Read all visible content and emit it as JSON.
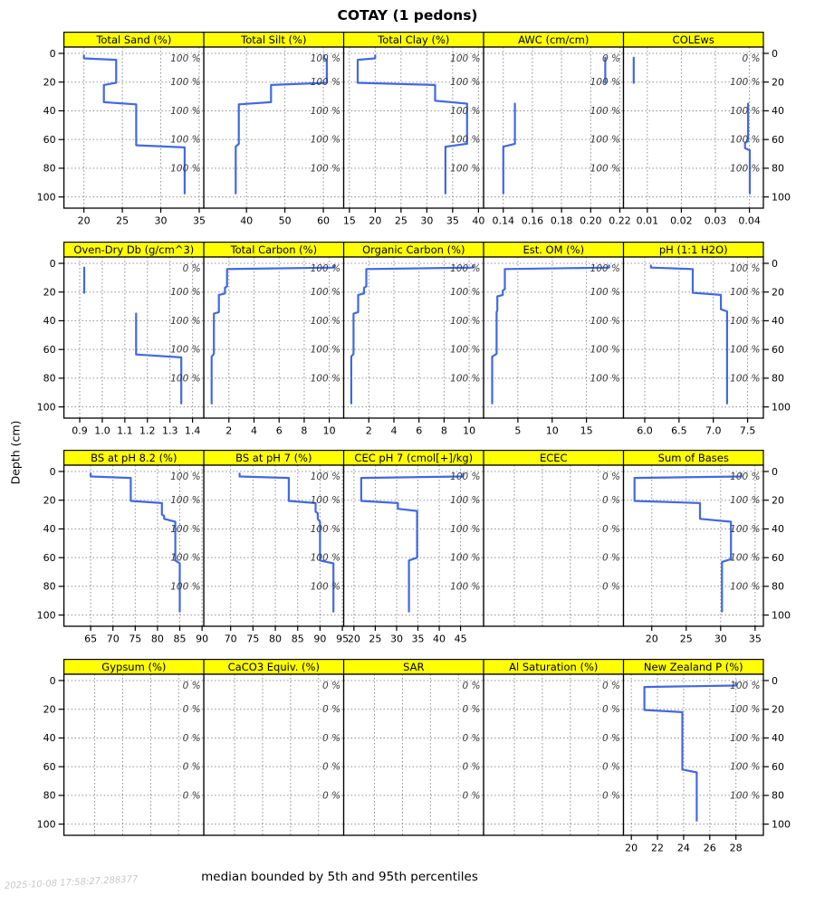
{
  "title": "COTAY (1 pedons)",
  "caption": "median bounded by 5th and 95th percentiles",
  "watermark": "2025-10-08 17:58:27.288377",
  "colors": {
    "line": "#4169E1",
    "strip_bg": "#FFFF00",
    "strip_text": "#000000",
    "grid": "#8f8f8f",
    "pct_label": "#3b3b3b",
    "axis_text": "#000000"
  },
  "chart_data": {
    "type": "line",
    "ylabel": "Depth (cm)",
    "y_ticks": [
      0,
      20,
      40,
      60,
      80,
      100
    ],
    "y_tick_labels": [
      "0",
      "20",
      "40",
      "60",
      "80",
      "100"
    ],
    "y_domain": [
      -4.4,
      107.8
    ],
    "y_axis_reversed": true,
    "grid": "dotted",
    "pct_label_depths": [
      3.5,
      20,
      40,
      60,
      80
    ],
    "panels": [
      {
        "title": "Total Sand (%)",
        "x_ticks": [
          20,
          25,
          30,
          35
        ],
        "x_tick_labels": [
          "20",
          "25",
          "30",
          "35"
        ],
        "x_domain": [
          17.4,
          35.6
        ],
        "pct_labels": [
          "100 %",
          "100 %",
          "100 %",
          "100 %",
          "100 %"
        ],
        "segments": [
          [
            [
              20,
              1.5
            ],
            [
              20,
              3.5
            ],
            [
              24.2,
              4.5
            ],
            [
              24.2,
              20.5
            ],
            [
              22.6,
              22
            ],
            [
              22.6,
              34
            ],
            [
              26.8,
              35.5
            ],
            [
              26.8,
              64
            ],
            [
              33.1,
              65.5
            ],
            [
              33.1,
              97.5
            ]
          ]
        ]
      },
      {
        "title": "Total Silt (%)",
        "x_ticks": [
          40,
          50,
          60
        ],
        "x_tick_labels": [
          "40",
          "50",
          "60"
        ],
        "x_domain": [
          28.9,
          65.3
        ],
        "pct_labels": [
          "100 %",
          "100 %",
          "100 %",
          "100 %",
          "100 %"
        ],
        "segments": [
          [
            [
              60.2,
              1.5
            ],
            [
              60.2,
              3.5
            ],
            [
              60.9,
              4.5
            ],
            [
              60.9,
              20.5
            ],
            [
              46.4,
              22
            ],
            [
              46.4,
              34
            ],
            [
              38,
              35.5
            ],
            [
              38,
              63
            ],
            [
              37.2,
              65
            ],
            [
              37.2,
              97.5
            ]
          ]
        ]
      },
      {
        "title": "Total Clay (%)",
        "x_ticks": [
          15,
          20,
          25,
          30,
          35,
          40
        ],
        "x_tick_labels": [
          "15",
          "20",
          "25",
          "30",
          "35",
          "40"
        ],
        "x_domain": [
          13.9,
          41.0
        ],
        "pct_labels": [
          "100 %",
          "100 %",
          "100 %",
          "100 %",
          "100 %"
        ],
        "segments": [
          [
            [
              20,
              1.5
            ],
            [
              20,
              3.5
            ],
            [
              16.6,
              4.5
            ],
            [
              16.6,
              20.5
            ],
            [
              31.6,
              22
            ],
            [
              31.6,
              33
            ],
            [
              37.8,
              35
            ],
            [
              37.8,
              63
            ],
            [
              33.6,
              65
            ],
            [
              33.6,
              97.5
            ]
          ]
        ]
      },
      {
        "title": "AWC (cm/cm)",
        "x_ticks": [
          0.14,
          0.16,
          0.18,
          0.2,
          0.22
        ],
        "x_tick_labels": [
          "0.14",
          "0.16",
          "0.18",
          "0.20",
          "0.22"
        ],
        "x_domain": [
          0.1265,
          0.2225
        ],
        "pct_labels": [
          "0 %",
          "100 %",
          "100 %",
          "100 %",
          "100 %"
        ],
        "segments": [
          [
            [
              0.21,
              3
            ],
            [
              0.21,
              20.5
            ]
          ],
          [
            [
              0.148,
              35
            ],
            [
              0.148,
              63
            ],
            [
              0.14,
              65
            ],
            [
              0.14,
              97.5
            ]
          ]
        ]
      },
      {
        "title": "COLEws",
        "x_ticks": [
          0.01,
          0.02,
          0.03,
          0.04
        ],
        "x_tick_labels": [
          "0.01",
          "0.02",
          "0.03",
          "0.04"
        ],
        "x_domain": [
          0.003,
          0.0441
        ],
        "pct_labels": [
          "0 %",
          "100 %",
          "100 %",
          "100 %",
          "100 %"
        ],
        "segments": [
          [
            [
              0.006,
              3
            ],
            [
              0.006,
              20.5
            ]
          ],
          [
            [
              0.0396,
              35
            ],
            [
              0.0396,
              61
            ],
            [
              0.0387,
              62.5
            ],
            [
              0.0387,
              66
            ],
            [
              0.0401,
              67.5
            ],
            [
              0.0401,
              97.5
            ]
          ]
        ]
      },
      {
        "title": "Oven-Dry Db (g/cm^3)",
        "x_ticks": [
          0.9,
          1.0,
          1.1,
          1.2,
          1.3,
          1.4
        ],
        "x_tick_labels": [
          "0.9",
          "1.0",
          "1.1",
          "1.2",
          "1.3",
          "1.4"
        ],
        "x_domain": [
          0.83,
          1.45
        ],
        "pct_labels": [
          "0 %",
          "100 %",
          "100 %",
          "100 %",
          "100 %"
        ],
        "segments": [
          [
            [
              0.92,
              3
            ],
            [
              0.92,
              20.5
            ]
          ],
          [
            [
              1.15,
              35
            ],
            [
              1.15,
              63.5
            ],
            [
              1.35,
              65.5
            ],
            [
              1.35,
              97.5
            ]
          ]
        ]
      },
      {
        "title": "Total Carbon (%)",
        "x_ticks": [
          2,
          4,
          6,
          8,
          10
        ],
        "x_tick_labels": [
          "2",
          "4",
          "6",
          "8",
          "10"
        ],
        "x_domain": [
          0,
          11.15
        ],
        "pct_labels": [
          "100 %",
          "100 %",
          "100 %",
          "100 %",
          "100 %"
        ],
        "segments": [
          [
            [
              10.4,
              1.5
            ],
            [
              10.4,
              3
            ],
            [
              1.85,
              4
            ],
            [
              1.85,
              16
            ],
            [
              1.68,
              17
            ],
            [
              1.68,
              21
            ],
            [
              1.2,
              22
            ],
            [
              1.2,
              34
            ],
            [
              0.8,
              35
            ],
            [
              0.8,
              63
            ],
            [
              0.62,
              65
            ],
            [
              0.62,
              97.5
            ]
          ]
        ]
      },
      {
        "title": "Organic Carbon (%)",
        "x_ticks": [
          2,
          4,
          6,
          8,
          10
        ],
        "x_tick_labels": [
          "2",
          "4",
          "6",
          "8",
          "10"
        ],
        "x_domain": [
          0,
          11.15
        ],
        "pct_labels": [
          "100 %",
          "100 %",
          "100 %",
          "100 %",
          "100 %"
        ],
        "segments": [
          [
            [
              10.3,
              1.5
            ],
            [
              10.3,
              3
            ],
            [
              1.8,
              4
            ],
            [
              1.8,
              16
            ],
            [
              1.62,
              17
            ],
            [
              1.62,
              21
            ],
            [
              1.15,
              22
            ],
            [
              1.15,
              34
            ],
            [
              0.78,
              35
            ],
            [
              0.78,
              63
            ],
            [
              0.6,
              65
            ],
            [
              0.6,
              97.5
            ]
          ]
        ]
      },
      {
        "title": "Est. OM (%)",
        "x_ticks": [
          5,
          10,
          15
        ],
        "x_tick_labels": [
          "5",
          "10",
          "15"
        ],
        "x_domain": [
          0,
          20.4
        ],
        "pct_labels": [
          "100 %",
          "100 %",
          "100 %",
          "100 %",
          "100 %"
        ],
        "segments": [
          [
            [
              18.3,
              1.5
            ],
            [
              18.3,
              3
            ],
            [
              3.1,
              4
            ],
            [
              3.1,
              18
            ],
            [
              2.8,
              19
            ],
            [
              2.8,
              22
            ],
            [
              2.0,
              23
            ],
            [
              2.0,
              33
            ],
            [
              1.9,
              34
            ],
            [
              1.9,
              63
            ],
            [
              1.25,
              65
            ],
            [
              1.25,
              97.5
            ]
          ]
        ]
      },
      {
        "title": "pH (1:1 H2O)",
        "x_ticks": [
          6.0,
          6.5,
          7.0,
          7.5
        ],
        "x_tick_labels": [
          "6.0",
          "6.5",
          "7.0",
          "7.5"
        ],
        "x_domain": [
          5.69,
          7.73
        ],
        "pct_labels": [
          "100 %",
          "100 %",
          "100 %",
          "100 %",
          "100 %"
        ],
        "segments": [
          [
            [
              6.09,
              1.5
            ],
            [
              6.09,
              3
            ],
            [
              6.7,
              4
            ],
            [
              6.7,
              20.5
            ],
            [
              7.11,
              22
            ],
            [
              7.11,
              32
            ],
            [
              7.2,
              33.5
            ],
            [
              7.2,
              97.5
            ]
          ]
        ]
      },
      {
        "title": "BS at pH 8.2 (%)",
        "x_ticks": [
          65,
          70,
          75,
          80,
          85,
          90
        ],
        "x_tick_labels": [
          "65",
          "70",
          "75",
          "80",
          "85",
          "90"
        ],
        "x_domain": [
          59.0,
          90.4
        ],
        "pct_labels": [
          "100 %",
          "100 %",
          "100 %",
          "100 %",
          "100 %"
        ],
        "segments": [
          [
            [
              65,
              1.5
            ],
            [
              65,
              3.5
            ],
            [
              74,
              4.5
            ],
            [
              74,
              20.5
            ],
            [
              81,
              22
            ],
            [
              81,
              30
            ],
            [
              81.5,
              31
            ],
            [
              81.5,
              33
            ],
            [
              84,
              35
            ],
            [
              84,
              62
            ],
            [
              85,
              64
            ],
            [
              85,
              97.5
            ]
          ]
        ]
      },
      {
        "title": "BS at pH 7 (%)",
        "x_ticks": [
          70,
          75,
          80,
          85,
          90,
          95
        ],
        "x_tick_labels": [
          "70",
          "75",
          "80",
          "85",
          "90",
          "95"
        ],
        "x_domain": [
          64.0,
          95.3
        ],
        "pct_labels": [
          "100 %",
          "100 %",
          "100 %",
          "100 %",
          "100 %"
        ],
        "segments": [
          [
            [
              72,
              1.5
            ],
            [
              72,
              3.5
            ],
            [
              83,
              4.5
            ],
            [
              83,
              20.5
            ],
            [
              89,
              22
            ],
            [
              89,
              28
            ],
            [
              89.5,
              29
            ],
            [
              89.5,
              33
            ],
            [
              90,
              35
            ],
            [
              90,
              62
            ],
            [
              93,
              64
            ],
            [
              93,
              97.5
            ]
          ]
        ]
      },
      {
        "title": "CEC pH 7 (cmol[+]/kg)",
        "x_ticks": [
          20,
          25,
          30,
          35,
          40,
          45
        ],
        "x_tick_labels": [
          "20",
          "25",
          "30",
          "35",
          "40",
          "45"
        ],
        "x_domain": [
          17.6,
          50.4
        ],
        "pct_labels": [
          "100 %",
          "100 %",
          "100 %",
          "100 %",
          "100 %"
        ],
        "segments": [
          [
            [
              45.6,
              1.5
            ],
            [
              45.6,
              3.5
            ],
            [
              21.7,
              4.5
            ],
            [
              21.7,
              20.5
            ],
            [
              30.3,
              22
            ],
            [
              30.3,
              26
            ],
            [
              34.8,
              27.5
            ],
            [
              34.8,
              60
            ],
            [
              32.9,
              62
            ],
            [
              32.9,
              97.5
            ]
          ]
        ]
      },
      {
        "title": "ECEC",
        "x_ticks": [],
        "x_tick_labels": [],
        "x_domain": [
          0,
          1
        ],
        "pct_labels": [
          "0 %",
          "0 %",
          "0 %",
          "0 %",
          "0 %"
        ],
        "segments": []
      },
      {
        "title": "Sum of Bases",
        "x_ticks": [
          20,
          25,
          30,
          35
        ],
        "x_tick_labels": [
          "20",
          "25",
          "30",
          "35"
        ],
        "x_domain": [
          15.9,
          36.2
        ],
        "pct_labels": [
          "100 %",
          "100 %",
          "100 %",
          "100 %",
          "100 %"
        ],
        "segments": [
          [
            [
              33,
              1.5
            ],
            [
              33,
              3.5
            ],
            [
              17.5,
              4.5
            ],
            [
              17.5,
              20.5
            ],
            [
              27,
              22
            ],
            [
              27,
              33
            ],
            [
              31.5,
              35
            ],
            [
              31.5,
              61
            ],
            [
              30.2,
              63
            ],
            [
              30.2,
              97.5
            ]
          ]
        ]
      },
      {
        "title": "Gypsum (%)",
        "x_ticks": [],
        "x_tick_labels": [],
        "x_domain": [
          0,
          1
        ],
        "pct_labels": [
          "0 %",
          "0 %",
          "0 %",
          "0 %",
          "0 %"
        ],
        "segments": []
      },
      {
        "title": "CaCO3 Equiv. (%)",
        "x_ticks": [],
        "x_tick_labels": [],
        "x_domain": [
          0,
          1
        ],
        "pct_labels": [
          "0 %",
          "0 %",
          "0 %",
          "0 %",
          "0 %"
        ],
        "segments": []
      },
      {
        "title": "SAR",
        "x_ticks": [],
        "x_tick_labels": [],
        "x_domain": [
          0,
          1
        ],
        "pct_labels": [
          "0 %",
          "0 %",
          "0 %",
          "0 %",
          "0 %"
        ],
        "segments": []
      },
      {
        "title": "Al Saturation (%)",
        "x_ticks": [],
        "x_tick_labels": [],
        "x_domain": [
          0,
          1
        ],
        "pct_labels": [
          "0 %",
          "0 %",
          "0 %",
          "0 %",
          "0 %"
        ],
        "segments": []
      },
      {
        "title": "New Zealand P (%)",
        "x_ticks": [
          20,
          22,
          24,
          26,
          28
        ],
        "x_tick_labels": [
          "20",
          "22",
          "24",
          "26",
          "28"
        ],
        "x_domain": [
          19.4,
          30.1
        ],
        "pct_labels": [
          "100 %",
          "100 %",
          "100 %",
          "100 %",
          "100 %"
        ],
        "segments": [
          [
            [
              28,
              1.5
            ],
            [
              28,
              3.5
            ],
            [
              21,
              4.5
            ],
            [
              21,
              20.5
            ],
            [
              23.9,
              22
            ],
            [
              23.9,
              62
            ],
            [
              25,
              64
            ],
            [
              25,
              97.5
            ]
          ]
        ]
      }
    ]
  }
}
